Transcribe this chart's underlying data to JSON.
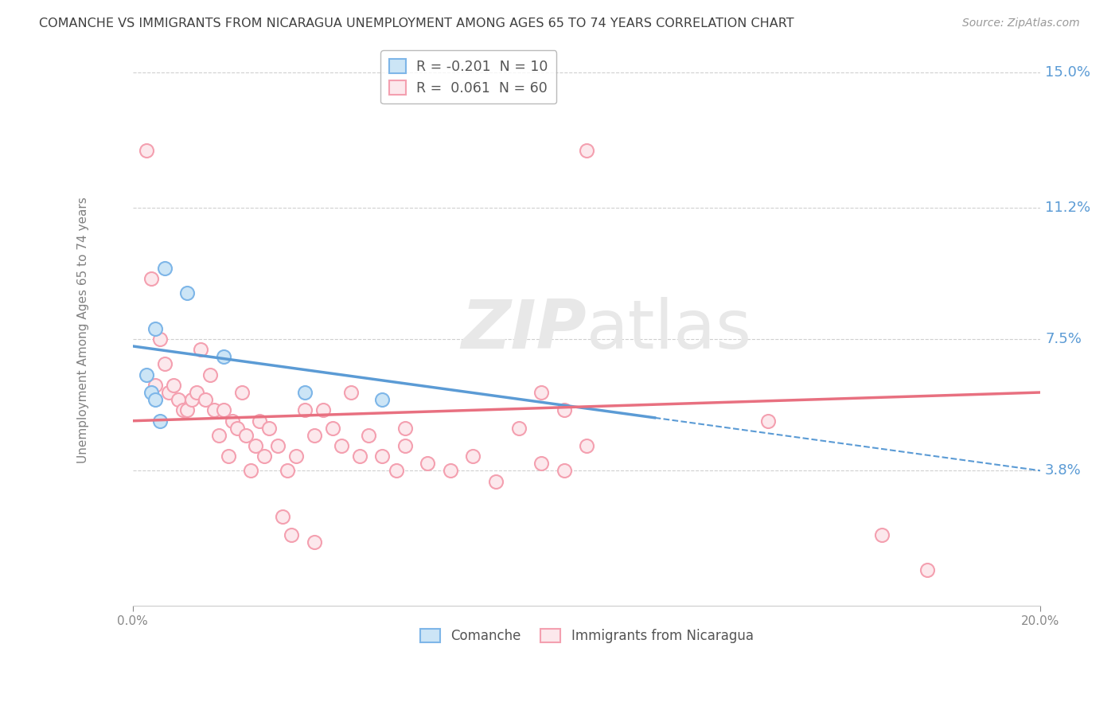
{
  "title": "COMANCHE VS IMMIGRANTS FROM NICARAGUA UNEMPLOYMENT AMONG AGES 65 TO 74 YEARS CORRELATION CHART",
  "source": "Source: ZipAtlas.com",
  "ylabel_label": "Unemployment Among Ages 65 to 74 years",
  "xlim": [
    0.0,
    0.2
  ],
  "ylim": [
    0.0,
    0.155
  ],
  "ylabel_ticks": [
    0.0,
    0.038,
    0.075,
    0.112,
    0.15
  ],
  "ylabel_tick_labels": [
    "",
    "3.8%",
    "7.5%",
    "11.2%",
    "15.0%"
  ],
  "bg_color": "#ffffff",
  "grid_color": "#d0d0d0",
  "tick_color": "#5b9bd5",
  "title_color": "#404040",
  "axis_label_color": "#808080",
  "dot_color_comanche_face": "#cce5f6",
  "dot_color_comanche_edge": "#7eb6e8",
  "dot_color_nicaragua_face": "#fce8ec",
  "dot_color_nicaragua_edge": "#f4a0b0",
  "trend_color_comanche": "#5b9bd5",
  "trend_color_nicaragua": "#e87080",
  "watermark_color": "#e8e8e8",
  "comanche_points": [
    [
      0.003,
      0.065
    ],
    [
      0.004,
      0.06
    ],
    [
      0.005,
      0.078
    ],
    [
      0.005,
      0.058
    ],
    [
      0.006,
      0.052
    ],
    [
      0.007,
      0.095
    ],
    [
      0.012,
      0.088
    ],
    [
      0.02,
      0.07
    ],
    [
      0.038,
      0.06
    ],
    [
      0.055,
      0.058
    ]
  ],
  "nicaragua_points": [
    [
      0.003,
      0.128
    ],
    [
      0.004,
      0.092
    ],
    [
      0.005,
      0.062
    ],
    [
      0.006,
      0.075
    ],
    [
      0.007,
      0.068
    ],
    [
      0.008,
      0.06
    ],
    [
      0.009,
      0.062
    ],
    [
      0.01,
      0.058
    ],
    [
      0.011,
      0.055
    ],
    [
      0.012,
      0.055
    ],
    [
      0.013,
      0.058
    ],
    [
      0.014,
      0.06
    ],
    [
      0.015,
      0.072
    ],
    [
      0.016,
      0.058
    ],
    [
      0.017,
      0.065
    ],
    [
      0.018,
      0.055
    ],
    [
      0.019,
      0.048
    ],
    [
      0.02,
      0.055
    ],
    [
      0.021,
      0.042
    ],
    [
      0.022,
      0.052
    ],
    [
      0.023,
      0.05
    ],
    [
      0.024,
      0.06
    ],
    [
      0.025,
      0.048
    ],
    [
      0.026,
      0.038
    ],
    [
      0.027,
      0.045
    ],
    [
      0.028,
      0.052
    ],
    [
      0.029,
      0.042
    ],
    [
      0.03,
      0.05
    ],
    [
      0.032,
      0.045
    ],
    [
      0.034,
      0.038
    ],
    [
      0.036,
      0.042
    ],
    [
      0.038,
      0.055
    ],
    [
      0.04,
      0.048
    ],
    [
      0.042,
      0.055
    ],
    [
      0.044,
      0.05
    ],
    [
      0.046,
      0.045
    ],
    [
      0.048,
      0.06
    ],
    [
      0.05,
      0.042
    ],
    [
      0.052,
      0.048
    ],
    [
      0.055,
      0.042
    ],
    [
      0.058,
      0.038
    ],
    [
      0.06,
      0.045
    ],
    [
      0.065,
      0.04
    ],
    [
      0.07,
      0.038
    ],
    [
      0.075,
      0.042
    ],
    [
      0.08,
      0.035
    ],
    [
      0.085,
      0.05
    ],
    [
      0.09,
      0.04
    ],
    [
      0.095,
      0.038
    ],
    [
      0.1,
      0.045
    ],
    [
      0.033,
      0.025
    ],
    [
      0.035,
      0.02
    ],
    [
      0.04,
      0.018
    ],
    [
      0.06,
      0.05
    ],
    [
      0.09,
      0.06
    ],
    [
      0.095,
      0.055
    ],
    [
      0.1,
      0.128
    ],
    [
      0.14,
      0.052
    ],
    [
      0.165,
      0.02
    ],
    [
      0.175,
      0.01
    ]
  ],
  "comanche_trend_x": [
    0.0,
    0.2
  ],
  "comanche_trend_y": [
    0.073,
    0.038
  ],
  "nicaragua_trend_x": [
    0.0,
    0.2
  ],
  "nicaragua_trend_y": [
    0.052,
    0.06
  ]
}
